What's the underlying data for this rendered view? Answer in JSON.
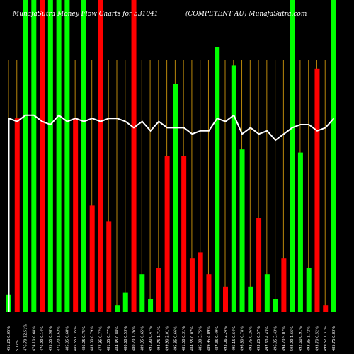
{
  "chart_data": {
    "type": "bar",
    "title_left": "MunafaSutra  Money Flow  Charts for 531041",
    "title_right": "(COMPETENT AU) MunafaSutra.com",
    "colors": {
      "up": "#00ff00",
      "down": "#ff0000",
      "grid": "#b8860b",
      "line": "#ffffff",
      "background": "#000000"
    },
    "ylim": [
      0,
      100
    ],
    "line_ylim": [
      0,
      100
    ],
    "categories": [
      "451.25 0.05%",
      "5.17%",
      "476.70 12.51%",
      "474.10 0.68%",
      "476.90 0.14%",
      "495.55 0.98%",
      "471.70 1.63%",
      "485.05 0.68%",
      "485.55 0.35%",
      "486.05 0.75%",
      "483.00 0.79%",
      "477.95 0.77%",
      "481.05 0.77%",
      "484.45 0.88%",
      "480.60 0.53%",
      "480.20 1.26%",
      "489.95 0.65%",
      "491.90 0.47%",
      "494.75 1.71%",
      "499.90 2.01%",
      "495.85 0.66%",
      "481.50 0.31%",
      "484.55 0.07%",
      "485.00 3.75%",
      "489.95 4.09%",
      "487.35 0.49%",
      "493.06 2.24%",
      "495.15 0.64%",
      "496.80 0.78%",
      "492.75 0.26%",
      "493.25 0.57%",
      "497.60 4.43%",
      "496.05 3.43%",
      "494.70 5.07%",
      "508.90 1.66%",
      "492.60 0.91%",
      "493.85 1.72%",
      "493.70 0.52%",
      "499.52 1.31%",
      "485.75 0.83%"
    ],
    "series": [
      {
        "values": [
          5.5,
          62,
          100,
          100,
          100,
          100,
          100,
          100,
          62,
          100,
          34,
          100,
          29,
          2,
          6,
          100,
          12,
          4,
          14,
          50,
          73,
          50,
          17,
          19,
          12,
          85,
          8,
          79,
          52,
          8,
          30,
          12,
          4,
          17,
          100,
          51,
          14,
          78,
          2,
          100
        ],
        "directions": [
          "up",
          "down",
          "up",
          "up",
          "down",
          "up",
          "up",
          "up",
          "down",
          "up",
          "down",
          "down",
          "down",
          "up",
          "up",
          "down",
          "up",
          "up",
          "down",
          "down",
          "up",
          "down",
          "down",
          "down",
          "down",
          "up",
          "down",
          "up",
          "up",
          "up",
          "down",
          "up",
          "up",
          "down",
          "up",
          "up",
          "up",
          "down",
          "down",
          "up"
        ]
      }
    ],
    "line_values": [
      62,
      61,
      63,
      63,
      61,
      60,
      63,
      61,
      62,
      61,
      62,
      61,
      62,
      62,
      61,
      59,
      61,
      58,
      61,
      59,
      59,
      59,
      57,
      58,
      58,
      62,
      61,
      63,
      57,
      59,
      57,
      58,
      55,
      57,
      59,
      60,
      60,
      58,
      59,
      62
    ],
    "extra_tail": {
      "bar": 30,
      "direction": "down",
      "bar2": 13,
      "direction2": "down",
      "bar3": 5,
      "direction3": "red"
    }
  }
}
